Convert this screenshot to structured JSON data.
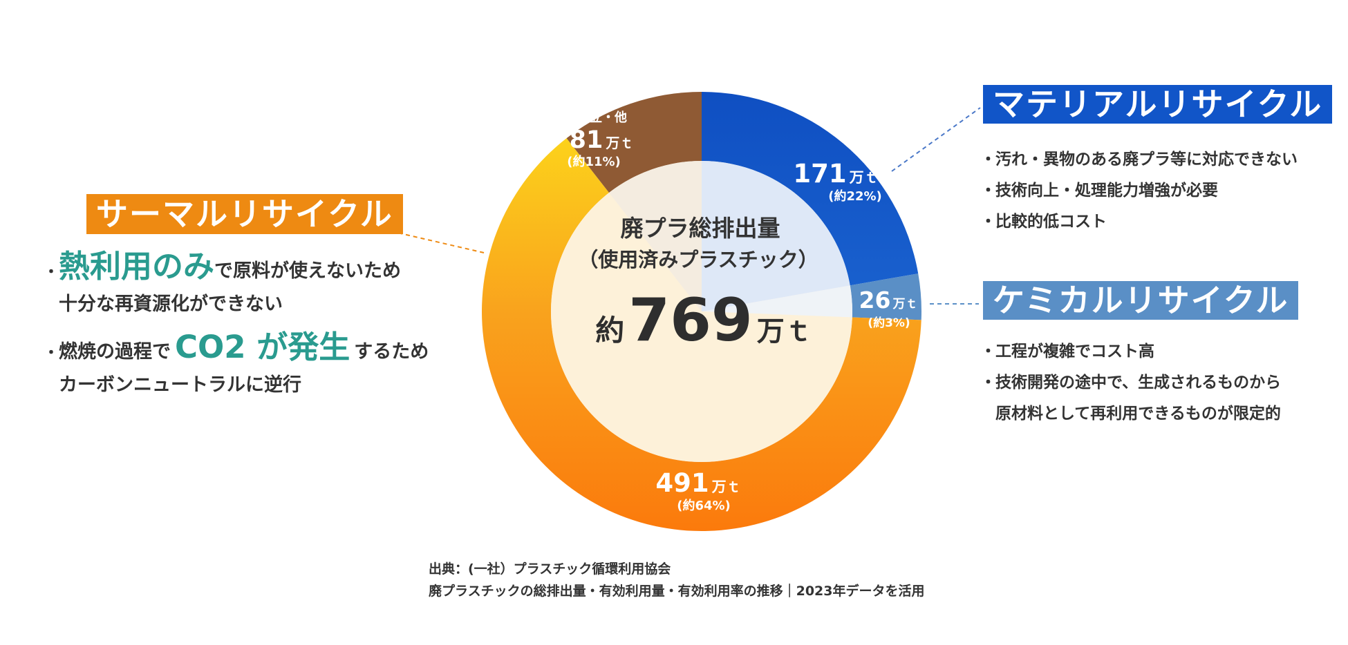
{
  "chart_data": {
    "type": "pie",
    "variant": "donut",
    "total_label": {
      "title": "廃プラ総排出量",
      "subtitle": "（使用済みプラスチック）",
      "prefix": "約",
      "value": "769",
      "unit": "万ｔ"
    },
    "slices": [
      {
        "name": "マテリアルリサイクル",
        "value": 171,
        "unit": "万ｔ",
        "pct_label": "(約22%)",
        "color": "#1155c8"
      },
      {
        "name": "ケミカルリサイクル",
        "value": 26,
        "unit": "万ｔ",
        "pct_label": "(約3%)",
        "color": "#5a8fc6"
      },
      {
        "name": "サーマルリサイクル",
        "value": 491,
        "unit": "万ｔ",
        "pct_label": "(約64%)",
        "color": "#f7891a"
      },
      {
        "name": "埋立・他",
        "value": 81,
        "unit": "万ｔ",
        "pct_label": "(約11%)",
        "color": "#8f5a34",
        "label_title": "埋立・他"
      }
    ]
  },
  "thermal": {
    "heading": "サーマルリサイクル",
    "color": "#ee8a12",
    "bullet1_highlight": "熱利用のみ",
    "bullet1_rest": "で原料が使えないため",
    "bullet1_line2": "十分な再資源化ができない",
    "bullet2_pre": "燃焼の過程で",
    "bullet2_highlight": "CO2 が発生",
    "bullet2_rest": "するため",
    "bullet2_line2": "カーボンニュートラルに逆行"
  },
  "material": {
    "heading": "マテリアルリサイクル",
    "color": "#1155c8",
    "bullets": [
      "汚れ・異物のある廃プラ等に対応できない",
      "技術向上・処理能力増強が必要",
      "比較的低コスト"
    ]
  },
  "chemical": {
    "heading": "ケミカルリサイクル",
    "color": "#5a8fc6",
    "bullets": [
      "工程が複雑でコスト高",
      "技術開発の途中で、生成されるものから",
      "原材料として再利用できるものが限定的"
    ]
  },
  "bullet_mark": "・",
  "source": {
    "line1": "出典：(一社）プラスチック循環利用協会",
    "line2": "廃プラスチックの総排出量・有効利用量・有効利用率の推移｜2023年データを活用"
  }
}
